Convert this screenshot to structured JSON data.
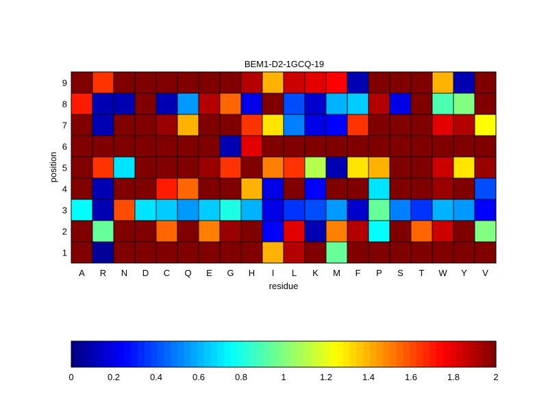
{
  "chart_data": {
    "type": "heatmap",
    "title": "BEM1-D2-1GCQ-19",
    "xlabel": "residue",
    "ylabel": "position",
    "x_categories": [
      "A",
      "R",
      "N",
      "D",
      "C",
      "Q",
      "E",
      "G",
      "H",
      "I",
      "L",
      "K",
      "M",
      "F",
      "P",
      "S",
      "T",
      "W",
      "Y",
      "V"
    ],
    "y_categories": [
      "1",
      "2",
      "3",
      "4",
      "5",
      "6",
      "7",
      "8",
      "9"
    ],
    "values": [
      [
        2.0,
        0.05,
        2.0,
        2.0,
        2.0,
        2.0,
        2.0,
        2.0,
        2.0,
        1.4,
        1.9,
        2.0,
        0.95,
        2.0,
        2.0,
        2.0,
        2.0,
        2.0,
        2.0,
        2.0
      ],
      [
        2.0,
        0.95,
        2.0,
        2.0,
        1.55,
        2.0,
        1.5,
        1.95,
        2.0,
        0.25,
        1.8,
        0.1,
        1.5,
        1.9,
        0.75,
        2.0,
        1.55,
        1.85,
        2.0,
        1.0
      ],
      [
        0.75,
        0.1,
        1.6,
        0.7,
        0.65,
        0.55,
        0.65,
        0.8,
        0.6,
        0.2,
        0.35,
        0.4,
        0.55,
        0.15,
        0.95,
        0.5,
        0.35,
        0.6,
        0.55,
        0.25
      ],
      [
        2.0,
        0.1,
        2.0,
        2.0,
        1.7,
        1.55,
        2.0,
        2.0,
        1.4,
        0.2,
        2.0,
        0.25,
        2.0,
        2.0,
        0.7,
        2.0,
        2.0,
        1.95,
        2.0,
        0.4
      ],
      [
        2.0,
        1.65,
        0.7,
        2.0,
        2.0,
        2.0,
        1.95,
        1.65,
        2.0,
        1.5,
        1.65,
        1.1,
        0.1,
        1.3,
        1.4,
        2.0,
        2.0,
        1.85,
        1.3,
        1.95
      ],
      [
        2.0,
        2.0,
        2.0,
        2.0,
        2.0,
        2.0,
        2.0,
        0.1,
        1.8,
        2.0,
        2.0,
        2.0,
        2.0,
        2.0,
        2.0,
        2.0,
        2.0,
        2.0,
        2.0,
        2.0
      ],
      [
        2.0,
        0.1,
        2.0,
        2.0,
        1.95,
        1.4,
        2.0,
        2.0,
        1.65,
        1.3,
        0.5,
        0.2,
        0.25,
        1.65,
        2.0,
        2.0,
        2.0,
        1.8,
        1.9,
        1.25
      ],
      [
        1.7,
        0.1,
        0.1,
        2.0,
        0.1,
        0.55,
        1.9,
        1.55,
        0.2,
        2.0,
        0.4,
        0.15,
        0.6,
        0.65,
        1.9,
        0.2,
        2.0,
        0.9,
        1.0,
        2.0
      ],
      [
        2.0,
        1.65,
        2.0,
        2.0,
        2.0,
        2.0,
        2.0,
        2.0,
        1.9,
        1.4,
        1.85,
        1.8,
        1.75,
        0.1,
        2.0,
        2.0,
        2.0,
        1.4,
        0.1,
        2.0
      ]
    ],
    "zlim": [
      0,
      2
    ],
    "colormap": "jet",
    "colorbar": {
      "orientation": "horizontal",
      "ticks": [
        "0",
        "0.2",
        "0.4",
        "0.6",
        "0.8",
        "1",
        "1.2",
        "1.4",
        "1.6",
        "1.8",
        "2"
      ],
      "tick_values": [
        0,
        0.2,
        0.4,
        0.6,
        0.8,
        1,
        1.2,
        1.4,
        1.6,
        1.8,
        2
      ]
    },
    "grid": false
  }
}
